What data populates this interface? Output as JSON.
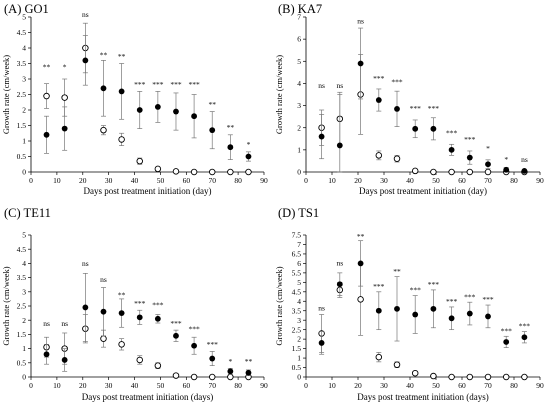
{
  "figure": {
    "panels": [
      "panel-a-go1",
      "panel-b-ka7",
      "panel-c-te11",
      "panel-d-ts1"
    ]
  },
  "chart_data": [
    {
      "type": "scatter",
      "title": "(A) GO1",
      "xlabel": "Days post treatment initiation (day)",
      "ylabel": "Growth rate (cm/week)",
      "xlim": [
        0,
        90
      ],
      "ylim": [
        0,
        5
      ],
      "xticks": [
        0,
        10,
        20,
        30,
        40,
        50,
        60,
        70,
        80,
        90
      ],
      "yticks": [
        0,
        0.5,
        1,
        1.5,
        2,
        2.5,
        3,
        3.5,
        4,
        4.5,
        5
      ],
      "grid": false,
      "x": [
        6,
        13,
        21,
        28,
        35,
        42,
        49,
        56,
        63,
        70,
        77,
        84
      ],
      "series": [
        {
          "marker": "filled",
          "values": [
            1.2,
            1.4,
            3.6,
            2.7,
            2.6,
            2.0,
            2.1,
            1.95,
            1.8,
            1.35,
            0.8,
            0.5
          ],
          "errors": [
            0.6,
            0.7,
            0.8,
            0.9,
            0.9,
            0.6,
            0.5,
            0.6,
            0.7,
            0.6,
            0.4,
            0.15
          ]
        },
        {
          "marker": "open",
          "values": [
            2.45,
            2.4,
            4.0,
            1.35,
            1.05,
            0.35,
            0.1,
            0.02,
            0.0,
            0.0,
            0.0,
            0.0
          ],
          "errors": [
            0.4,
            0.6,
            0.8,
            0.15,
            0.2,
            0.1,
            0.05,
            0.0,
            0.0,
            0.0,
            0.0,
            0.0
          ]
        }
      ],
      "annotations": [
        {
          "x": 6,
          "y": 3.3,
          "text": "**"
        },
        {
          "x": 13,
          "y": 3.3,
          "text": "*"
        },
        {
          "x": 21,
          "y": 5.0,
          "text": "ns"
        },
        {
          "x": 28,
          "y": 3.7,
          "text": "**"
        },
        {
          "x": 35,
          "y": 3.65,
          "text": "**"
        },
        {
          "x": 42,
          "y": 2.75,
          "text": "***"
        },
        {
          "x": 49,
          "y": 2.75,
          "text": "***"
        },
        {
          "x": 56,
          "y": 2.75,
          "text": "***"
        },
        {
          "x": 63,
          "y": 2.75,
          "text": "***"
        },
        {
          "x": 70,
          "y": 2.1,
          "text": "**"
        },
        {
          "x": 77,
          "y": 1.35,
          "text": "**"
        },
        {
          "x": 84,
          "y": 0.8,
          "text": "*"
        }
      ]
    },
    {
      "type": "scatter",
      "title": "(B) KA7",
      "xlabel": "Days post treatment initiation (day)",
      "ylabel": "Growth rate (cm/week)",
      "xlim": [
        0,
        90
      ],
      "ylim": [
        0,
        7
      ],
      "xticks": [
        0,
        10,
        20,
        30,
        40,
        50,
        60,
        70,
        80,
        90
      ],
      "yticks": [
        0,
        1,
        2,
        3,
        4,
        5,
        6,
        7
      ],
      "grid": false,
      "x": [
        6,
        13,
        21,
        28,
        35,
        42,
        49,
        56,
        63,
        70,
        77,
        84
      ],
      "series": [
        {
          "marker": "filled",
          "values": [
            1.6,
            1.2,
            4.9,
            3.25,
            2.85,
            1.95,
            1.95,
            1.0,
            0.65,
            0.35,
            0.1,
            0.05
          ],
          "errors": [
            1.0,
            2.3,
            1.6,
            0.5,
            0.8,
            0.4,
            0.5,
            0.25,
            0.3,
            0.2,
            0.1,
            0.05
          ]
        },
        {
          "marker": "open",
          "values": [
            2.0,
            2.4,
            3.5,
            0.75,
            0.6,
            0.05,
            0.0,
            0.0,
            0.0,
            0.0,
            0.0,
            0.0
          ],
          "errors": [
            0.8,
            1.2,
            1.8,
            0.2,
            0.15,
            0.05,
            0.0,
            0.0,
            0.0,
            0.0,
            0.0,
            0.0
          ]
        }
      ],
      "annotations": [
        {
          "x": 6,
          "y": 3.8,
          "text": "ns"
        },
        {
          "x": 13,
          "y": 3.8,
          "text": "ns"
        },
        {
          "x": 21,
          "y": 6.7,
          "text": "ns"
        },
        {
          "x": 28,
          "y": 4.1,
          "text": "***"
        },
        {
          "x": 35,
          "y": 3.95,
          "text": "***"
        },
        {
          "x": 42,
          "y": 2.75,
          "text": "***"
        },
        {
          "x": 49,
          "y": 2.75,
          "text": "***"
        },
        {
          "x": 56,
          "y": 1.65,
          "text": "***"
        },
        {
          "x": 63,
          "y": 1.35,
          "text": "***"
        },
        {
          "x": 70,
          "y": 0.95,
          "text": "*"
        },
        {
          "x": 77,
          "y": 0.45,
          "text": "*"
        },
        {
          "x": 84,
          "y": 0.45,
          "text": "ns"
        }
      ]
    },
    {
      "type": "scatter",
      "title": "(C) TE11",
      "xlabel": "Days post treatment initiation (days)",
      "ylabel": "Growth rate (cm/week)",
      "xlim": [
        0,
        90
      ],
      "ylim": [
        0,
        5
      ],
      "xticks": [
        0,
        10,
        20,
        30,
        40,
        50,
        60,
        70,
        80,
        90
      ],
      "yticks": [
        0,
        0.5,
        1,
        1.5,
        2,
        2.5,
        3,
        3.5,
        4,
        4.5,
        5
      ],
      "grid": false,
      "x": [
        6,
        13,
        21,
        28,
        35,
        42,
        49,
        56,
        63,
        70,
        77,
        84
      ],
      "series": [
        {
          "marker": "filled",
          "values": [
            0.8,
            0.6,
            2.45,
            2.3,
            2.25,
            2.1,
            2.05,
            1.45,
            1.1,
            0.65,
            0.2,
            0.15
          ],
          "errors": [
            0.35,
            0.4,
            1.2,
            0.85,
            0.5,
            0.25,
            0.15,
            0.2,
            0.3,
            0.25,
            0.1,
            0.1
          ]
        },
        {
          "marker": "open",
          "values": [
            1.05,
            1.0,
            1.7,
            1.35,
            1.15,
            0.6,
            0.4,
            0.05,
            0.0,
            0.0,
            0.0,
            0.0
          ],
          "errors": [
            0.35,
            0.55,
            0.5,
            0.3,
            0.2,
            0.15,
            0.1,
            0.05,
            0.0,
            0.0,
            0.0,
            0.0
          ]
        }
      ],
      "annotations": [
        {
          "x": 6,
          "y": 1.8,
          "text": "ns"
        },
        {
          "x": 13,
          "y": 1.8,
          "text": "ns"
        },
        {
          "x": 21,
          "y": 3.9,
          "text": "ns"
        },
        {
          "x": 28,
          "y": 3.35,
          "text": "ns"
        },
        {
          "x": 35,
          "y": 2.8,
          "text": "**"
        },
        {
          "x": 42,
          "y": 2.5,
          "text": "***"
        },
        {
          "x": 49,
          "y": 2.45,
          "text": "***"
        },
        {
          "x": 56,
          "y": 1.8,
          "text": "***"
        },
        {
          "x": 63,
          "y": 1.6,
          "text": "***"
        },
        {
          "x": 70,
          "y": 1.05,
          "text": "***"
        },
        {
          "x": 77,
          "y": 0.45,
          "text": "*"
        },
        {
          "x": 84,
          "y": 0.45,
          "text": "**"
        }
      ]
    },
    {
      "type": "scatter",
      "title": "(D) TS1",
      "xlabel": "Days post treatment initiation (days)",
      "ylabel": "Growth rate (cm/week)",
      "xlim": [
        0,
        90
      ],
      "ylim": [
        0,
        7.5
      ],
      "xticks": [
        0,
        10,
        20,
        30,
        40,
        50,
        60,
        70,
        80,
        90
      ],
      "yticks": [
        0,
        0.5,
        1,
        1.5,
        2,
        2.5,
        3,
        3.5,
        4,
        4.5,
        5,
        5.5,
        6,
        6.5,
        7,
        7.5
      ],
      "grid": false,
      "x": [
        6,
        13,
        21,
        28,
        35,
        42,
        49,
        56,
        63,
        70,
        77,
        84
      ],
      "series": [
        {
          "marker": "filled",
          "values": [
            1.8,
            4.9,
            6.0,
            3.5,
            3.6,
            3.3,
            3.6,
            3.1,
            3.35,
            3.2,
            1.85,
            2.1
          ],
          "errors": [
            0.6,
            0.6,
            1.2,
            1.0,
            1.7,
            1.0,
            1.0,
            0.6,
            0.6,
            0.6,
            0.3,
            0.3
          ]
        },
        {
          "marker": "open",
          "values": [
            2.3,
            4.6,
            4.1,
            1.05,
            0.65,
            0.2,
            0.05,
            0.0,
            0.0,
            0.0,
            0.0,
            0.0
          ],
          "errors": [
            1.0,
            0.4,
            1.9,
            0.25,
            0.15,
            0.05,
            0.0,
            0.0,
            0.0,
            0.0,
            0.0,
            0.0
          ]
        }
      ],
      "annotations": [
        {
          "x": 6,
          "y": 3.5,
          "text": "ns"
        },
        {
          "x": 13,
          "y": 5.9,
          "text": "ns"
        },
        {
          "x": 21,
          "y": 7.3,
          "text": "**"
        },
        {
          "x": 28,
          "y": 4.65,
          "text": "***"
        },
        {
          "x": 35,
          "y": 5.45,
          "text": "**"
        },
        {
          "x": 42,
          "y": 4.45,
          "text": "***"
        },
        {
          "x": 49,
          "y": 4.75,
          "text": "***"
        },
        {
          "x": 56,
          "y": 3.85,
          "text": "***"
        },
        {
          "x": 63,
          "y": 4.1,
          "text": "***"
        },
        {
          "x": 70,
          "y": 3.95,
          "text": "***"
        },
        {
          "x": 77,
          "y": 2.3,
          "text": "***"
        },
        {
          "x": 84,
          "y": 2.55,
          "text": "***"
        }
      ]
    }
  ]
}
